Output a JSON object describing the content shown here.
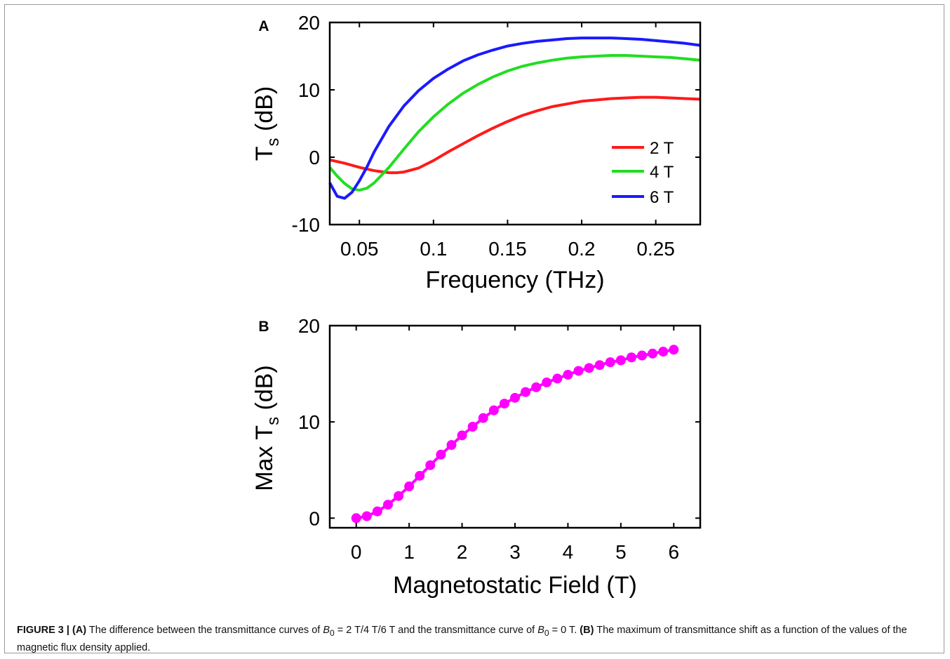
{
  "chart_data": [
    {
      "panel_label": "A",
      "type": "line",
      "xlabel": "Frequency (THz)",
      "ylabel": "T_s (dB)",
      "xlim": [
        0.03,
        0.28
      ],
      "ylim": [
        -10,
        20
      ],
      "xticks": [
        "0.05",
        "0.1",
        "0.15",
        "0.2",
        "0.25"
      ],
      "yticks": [
        "-10",
        "0",
        "10",
        "20"
      ],
      "grid": false,
      "legend_position": "right",
      "series": [
        {
          "name": "2 T",
          "color": "#ff1a1a",
          "x": [
            0.03,
            0.04,
            0.05,
            0.06,
            0.07,
            0.075,
            0.08,
            0.09,
            0.1,
            0.11,
            0.12,
            0.13,
            0.14,
            0.15,
            0.16,
            0.17,
            0.18,
            0.19,
            0.2,
            0.21,
            0.22,
            0.23,
            0.24,
            0.25,
            0.26,
            0.27,
            0.28
          ],
          "y": [
            -0.4,
            -0.9,
            -1.5,
            -2.0,
            -2.3,
            -2.3,
            -2.2,
            -1.6,
            -0.5,
            0.8,
            2.0,
            3.2,
            4.3,
            5.3,
            6.2,
            6.9,
            7.5,
            7.9,
            8.3,
            8.5,
            8.7,
            8.8,
            8.9,
            8.9,
            8.8,
            8.7,
            8.6
          ]
        },
        {
          "name": "4 T",
          "color": "#22dd22",
          "x": [
            0.03,
            0.035,
            0.04,
            0.045,
            0.05,
            0.055,
            0.06,
            0.07,
            0.08,
            0.09,
            0.1,
            0.11,
            0.12,
            0.13,
            0.14,
            0.15,
            0.16,
            0.17,
            0.18,
            0.19,
            0.2,
            0.21,
            0.22,
            0.23,
            0.24,
            0.25,
            0.26,
            0.27,
            0.28
          ],
          "y": [
            -1.5,
            -2.8,
            -3.9,
            -4.7,
            -4.9,
            -4.6,
            -3.8,
            -1.5,
            1.2,
            3.8,
            6.0,
            7.9,
            9.5,
            10.8,
            11.9,
            12.8,
            13.5,
            14.0,
            14.4,
            14.7,
            14.9,
            15.0,
            15.1,
            15.1,
            15.0,
            14.9,
            14.8,
            14.6,
            14.4
          ]
        },
        {
          "name": "6 T",
          "color": "#1a1aff",
          "x": [
            0.03,
            0.035,
            0.04,
            0.045,
            0.05,
            0.055,
            0.06,
            0.07,
            0.08,
            0.09,
            0.1,
            0.11,
            0.12,
            0.13,
            0.14,
            0.15,
            0.16,
            0.17,
            0.18,
            0.19,
            0.2,
            0.21,
            0.22,
            0.23,
            0.24,
            0.25,
            0.26,
            0.27,
            0.28
          ],
          "y": [
            -3.8,
            -5.8,
            -6.1,
            -5.2,
            -3.5,
            -1.5,
            0.8,
            4.6,
            7.6,
            9.9,
            11.7,
            13.1,
            14.3,
            15.2,
            15.9,
            16.5,
            16.9,
            17.2,
            17.4,
            17.6,
            17.7,
            17.7,
            17.7,
            17.6,
            17.5,
            17.3,
            17.1,
            16.9,
            16.6
          ]
        }
      ]
    },
    {
      "panel_label": "B",
      "type": "line",
      "xlabel": "Magnetostatic Field (T)",
      "ylabel": "Max T_s (dB)",
      "xlim": [
        -0.5,
        6.5
      ],
      "ylim": [
        -1,
        20
      ],
      "xticks": [
        "0",
        "1",
        "2",
        "3",
        "4",
        "5",
        "6"
      ],
      "yticks": [
        "0",
        "10",
        "20"
      ],
      "grid": false,
      "series": [
        {
          "color": "#ff00ff",
          "marker": "circle",
          "x": [
            0,
            0.2,
            0.4,
            0.6,
            0.8,
            1.0,
            1.2,
            1.4,
            1.6,
            1.8,
            2.0,
            2.2,
            2.4,
            2.6,
            2.8,
            3.0,
            3.2,
            3.4,
            3.6,
            3.8,
            4.0,
            4.2,
            4.4,
            4.6,
            4.8,
            5.0,
            5.2,
            5.4,
            5.6,
            5.8,
            6.0
          ],
          "y": [
            0.0,
            0.2,
            0.7,
            1.4,
            2.3,
            3.3,
            4.4,
            5.5,
            6.6,
            7.6,
            8.6,
            9.5,
            10.4,
            11.2,
            11.9,
            12.5,
            13.1,
            13.6,
            14.1,
            14.5,
            14.9,
            15.3,
            15.6,
            15.9,
            16.2,
            16.4,
            16.7,
            16.9,
            17.1,
            17.3,
            17.5
          ]
        }
      ]
    }
  ],
  "caption": {
    "figure_label": "FIGURE 3 |",
    "a_label": "(A)",
    "a_text_1": "The difference between the transmittance curves of",
    "a_text_2": "= 2 T/4 T/6 T and the transmittance curve of",
    "a_text_3": "= 0 T.",
    "b_label": "(B)",
    "b_text": "The maximum of transmittance shift as a function of the values of the magnetic flux density applied.",
    "symbol_B": "B",
    "symbol_sub": "0"
  }
}
